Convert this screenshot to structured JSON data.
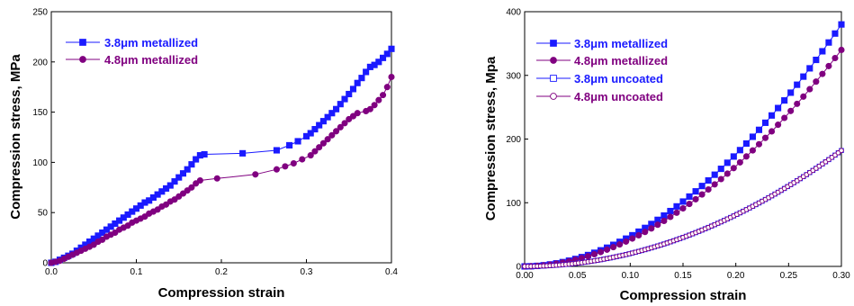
{
  "chart_data": [
    {
      "type": "scatter",
      "xlabel": "Compression strain",
      "ylabel": "Compression stress, MPa",
      "xlim": [
        0,
        0.4
      ],
      "ylim": [
        0,
        250
      ],
      "xticks": [
        "0.0",
        "0.1",
        "0.2",
        "0.3",
        "0.4"
      ],
      "yticks": [
        "0",
        "50",
        "100",
        "150",
        "200",
        "250"
      ],
      "grid": false,
      "legend": "top-left",
      "series": [
        {
          "name": "3.8μm metallized",
          "marker": "square-filled",
          "color": "#1a1aff",
          "points": [
            [
              0,
              0
            ],
            [
              0.005,
              1
            ],
            [
              0.01,
              3
            ],
            [
              0.015,
              5
            ],
            [
              0.02,
              7
            ],
            [
              0.025,
              9
            ],
            [
              0.03,
              12
            ],
            [
              0.035,
              15
            ],
            [
              0.04,
              18
            ],
            [
              0.045,
              21
            ],
            [
              0.05,
              24
            ],
            [
              0.055,
              27
            ],
            [
              0.06,
              30
            ],
            [
              0.065,
              33
            ],
            [
              0.07,
              36
            ],
            [
              0.075,
              39
            ],
            [
              0.08,
              42
            ],
            [
              0.085,
              45
            ],
            [
              0.09,
              48
            ],
            [
              0.095,
              51
            ],
            [
              0.1,
              54
            ],
            [
              0.105,
              57
            ],
            [
              0.11,
              60
            ],
            [
              0.115,
              62
            ],
            [
              0.12,
              65
            ],
            [
              0.125,
              68
            ],
            [
              0.13,
              71
            ],
            [
              0.135,
              74
            ],
            [
              0.14,
              77
            ],
            [
              0.145,
              81
            ],
            [
              0.15,
              85
            ],
            [
              0.155,
              89
            ],
            [
              0.16,
              93
            ],
            [
              0.165,
              98
            ],
            [
              0.17,
              103
            ],
            [
              0.175,
              107
            ],
            [
              0.18,
              108
            ],
            [
              0.225,
              109
            ],
            [
              0.265,
              112
            ],
            [
              0.28,
              117
            ],
            [
              0.29,
              121
            ],
            [
              0.3,
              126
            ],
            [
              0.305,
              129
            ],
            [
              0.31,
              133
            ],
            [
              0.315,
              137
            ],
            [
              0.32,
              141
            ],
            [
              0.325,
              145
            ],
            [
              0.33,
              149
            ],
            [
              0.335,
              153
            ],
            [
              0.34,
              158
            ],
            [
              0.345,
              163
            ],
            [
              0.35,
              168
            ],
            [
              0.355,
              173
            ],
            [
              0.36,
              179
            ],
            [
              0.365,
              184
            ],
            [
              0.37,
              190
            ],
            [
              0.375,
              195
            ],
            [
              0.38,
              197
            ],
            [
              0.385,
              200
            ],
            [
              0.39,
              204
            ],
            [
              0.395,
              208
            ],
            [
              0.4,
              213
            ]
          ]
        },
        {
          "name": "4.8μm metallized",
          "marker": "circle-filled",
          "color": "#800080",
          "points": [
            [
              0,
              0
            ],
            [
              0.005,
              1
            ],
            [
              0.01,
              2
            ],
            [
              0.015,
              4
            ],
            [
              0.02,
              6
            ],
            [
              0.025,
              8
            ],
            [
              0.03,
              10
            ],
            [
              0.035,
              12
            ],
            [
              0.04,
              14
            ],
            [
              0.045,
              16
            ],
            [
              0.05,
              18
            ],
            [
              0.055,
              21
            ],
            [
              0.06,
              23
            ],
            [
              0.065,
              26
            ],
            [
              0.07,
              28
            ],
            [
              0.075,
              30
            ],
            [
              0.08,
              33
            ],
            [
              0.085,
              35
            ],
            [
              0.09,
              37
            ],
            [
              0.095,
              40
            ],
            [
              0.1,
              42
            ],
            [
              0.105,
              44
            ],
            [
              0.11,
              46
            ],
            [
              0.115,
              49
            ],
            [
              0.12,
              51
            ],
            [
              0.125,
              53
            ],
            [
              0.13,
              56
            ],
            [
              0.135,
              58
            ],
            [
              0.14,
              61
            ],
            [
              0.145,
              63
            ],
            [
              0.15,
              66
            ],
            [
              0.155,
              69
            ],
            [
              0.16,
              72
            ],
            [
              0.165,
              75
            ],
            [
              0.17,
              79
            ],
            [
              0.175,
              82
            ],
            [
              0.195,
              84
            ],
            [
              0.24,
              88
            ],
            [
              0.265,
              93
            ],
            [
              0.275,
              96
            ],
            [
              0.285,
              99
            ],
            [
              0.295,
              103
            ],
            [
              0.305,
              107
            ],
            [
              0.31,
              111
            ],
            [
              0.315,
              115
            ],
            [
              0.32,
              119
            ],
            [
              0.325,
              123
            ],
            [
              0.33,
              127
            ],
            [
              0.335,
              131
            ],
            [
              0.34,
              135
            ],
            [
              0.345,
              139
            ],
            [
              0.35,
              143
            ],
            [
              0.355,
              146
            ],
            [
              0.36,
              149
            ],
            [
              0.37,
              151
            ],
            [
              0.375,
              153
            ],
            [
              0.38,
              157
            ],
            [
              0.385,
              162
            ],
            [
              0.39,
              167
            ],
            [
              0.395,
              175
            ],
            [
              0.4,
              185
            ]
          ]
        }
      ]
    },
    {
      "type": "scatter",
      "xlabel": "Compression strain",
      "ylabel": "Compression stress, Mpa",
      "xlim": [
        0,
        0.3
      ],
      "ylim": [
        0,
        400
      ],
      "xticks": [
        "0.00",
        "0.05",
        "0.10",
        "0.15",
        "0.20",
        "0.25",
        "0.30"
      ],
      "yticks": [
        "0",
        "100",
        "200",
        "300",
        "400"
      ],
      "grid": false,
      "legend": "top-left",
      "series": [
        {
          "name": "3.8μm metallized",
          "marker": "square-filled",
          "color": "#1a1aff",
          "fit": {
            "k": 380,
            "p": 1.9,
            "xmax": 0.3,
            "step": 0.006
          }
        },
        {
          "name": "4.8μm metallized",
          "marker": "circle-filled",
          "color": "#800080",
          "fit": {
            "k": 340,
            "p": 1.9,
            "xmax": 0.3,
            "step": 0.006
          }
        },
        {
          "name": "3.8μm uncoated",
          "marker": "square-open",
          "color": "#1a1aff",
          "fit": {
            "k": 182,
            "p": 2.0,
            "xmax": 0.3,
            "step": 0.003
          }
        },
        {
          "name": "4.8μm uncoated",
          "marker": "circle-open",
          "color": "#800080",
          "fit": {
            "k": 182,
            "p": 2.0,
            "xmax": 0.3,
            "step": 0.003
          }
        }
      ]
    }
  ]
}
